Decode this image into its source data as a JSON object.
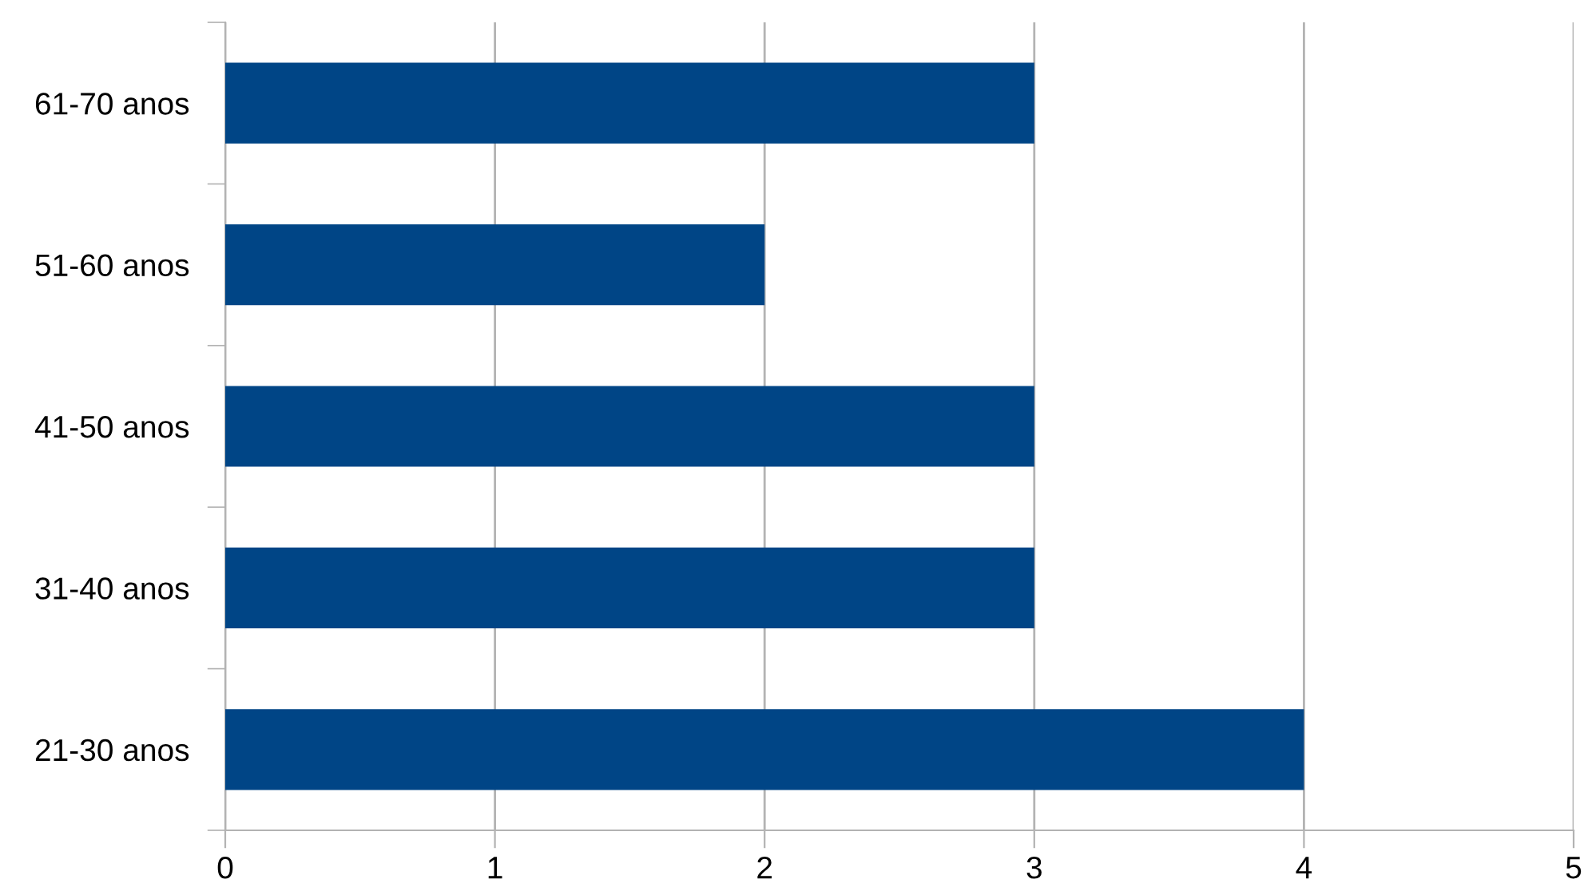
{
  "chart_data": {
    "type": "bar",
    "orientation": "horizontal",
    "categories": [
      "61-70 anos",
      "51-60 anos",
      "41-50 anos",
      "31-40 anos",
      "21-30 anos"
    ],
    "values": [
      3,
      2,
      3,
      3,
      4
    ],
    "color": "#004586",
    "xlim": [
      0,
      5
    ],
    "xticks": [
      0,
      1,
      2,
      3,
      4,
      5
    ],
    "grid": "x",
    "legend": false
  }
}
